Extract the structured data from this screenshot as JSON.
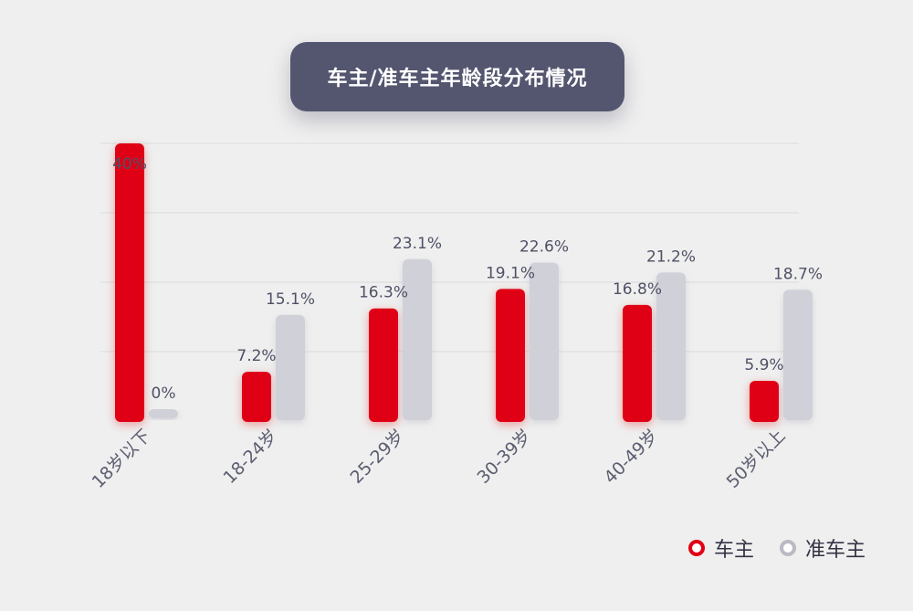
{
  "title": "车主/准车主年龄段分布情况",
  "colors": {
    "owner": "#e00016",
    "prospect": "#cfd0d8",
    "label": "#4f5166",
    "grid": "#e2e2e2",
    "tick": "#5b5d70"
  },
  "legend": [
    {
      "label": "车主",
      "color": "#e00016"
    },
    {
      "label": "准车主",
      "color": "#b9bac4"
    }
  ],
  "chart_data": {
    "type": "bar",
    "title": "车主/准车主年龄段分布情况",
    "categories": [
      "18岁以下",
      "18-24岁",
      "25-29岁",
      "30-39岁",
      "40-49岁",
      "50岁以上"
    ],
    "series": [
      {
        "name": "车主",
        "values": [
          40,
          7.2,
          16.3,
          19.1,
          16.8,
          5.9
        ],
        "labels": [
          "40%",
          "7.2%",
          "16.3%",
          "19.1%",
          "16.8%",
          "5.9%"
        ]
      },
      {
        "name": "准车主",
        "values": [
          0,
          15.1,
          23.1,
          22.6,
          21.2,
          18.7
        ],
        "labels": [
          "0%",
          "15.1%",
          "23.1%",
          "22.6%",
          "21.2%",
          "18.7%"
        ]
      }
    ],
    "ylim": [
      0,
      40
    ],
    "grid": true,
    "legend_position": "bottom-right"
  }
}
